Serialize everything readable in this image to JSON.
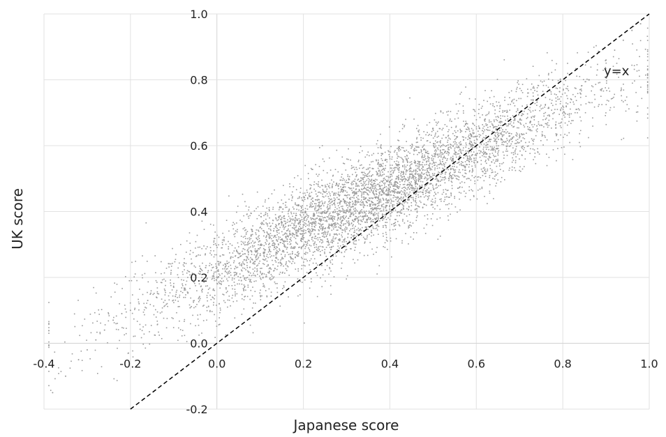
{
  "chart_data": {
    "type": "scatter",
    "title": "",
    "xlabel": "Japanese score",
    "ylabel": "UK score",
    "xlim": [
      -0.4,
      1.0
    ],
    "ylim": [
      -0.2,
      1.0
    ],
    "xticks": [
      "-0.4",
      "-0.2",
      "0.0",
      "0.2",
      "0.4",
      "0.6",
      "0.8",
      "1.0"
    ],
    "yticks": [
      "-0.2",
      "0.0",
      "0.2",
      "0.4",
      "0.6",
      "0.8",
      "1.0"
    ],
    "grid": true,
    "point_color": "#9a9a9a",
    "reference_line": {
      "label": "y=x",
      "from": [
        -0.2,
        -0.2
      ],
      "to": [
        1.0,
        1.0
      ],
      "style": "dashed",
      "color": "#000000"
    },
    "series": [
      {
        "name": "",
        "approx_trend": {
          "slope": 0.62,
          "intercept": 0.22
        },
        "x": [
          -0.38,
          -0.35,
          -0.32,
          -0.3,
          -0.28,
          -0.26,
          -0.24,
          -0.22,
          -0.2,
          -0.18,
          -0.16,
          -0.14,
          -0.12,
          -0.1,
          -0.08,
          -0.06,
          -0.04,
          -0.02,
          0.0,
          0.02,
          0.04,
          0.06,
          0.08,
          0.1,
          0.12,
          0.14,
          0.16,
          0.18,
          0.2,
          0.22,
          0.24,
          0.26,
          0.28,
          0.3,
          0.32,
          0.34,
          0.36,
          0.38,
          0.4,
          0.42,
          0.44,
          0.46,
          0.48,
          0.5,
          0.52,
          0.54,
          0.56,
          0.58,
          0.6,
          0.62,
          0.64,
          0.66,
          0.68,
          0.7,
          0.72,
          0.74,
          0.76,
          0.78,
          0.8,
          0.82,
          0.84,
          0.86,
          0.88,
          0.9,
          0.92,
          0.94,
          0.96,
          0.98
        ],
        "y": [
          -0.15,
          -0.1,
          -0.05,
          -0.02,
          0.01,
          0.04,
          0.07,
          0.09,
          0.1,
          0.12,
          0.13,
          0.14,
          0.16,
          0.17,
          0.18,
          0.2,
          0.21,
          0.22,
          0.23,
          0.24,
          0.25,
          0.27,
          0.28,
          0.29,
          0.3,
          0.31,
          0.32,
          0.33,
          0.34,
          0.36,
          0.37,
          0.38,
          0.39,
          0.4,
          0.41,
          0.42,
          0.44,
          0.45,
          0.46,
          0.47,
          0.48,
          0.49,
          0.5,
          0.51,
          0.52,
          0.54,
          0.55,
          0.56,
          0.57,
          0.58,
          0.59,
          0.61,
          0.62,
          0.63,
          0.65,
          0.66,
          0.68,
          0.7,
          0.72,
          0.74,
          0.77,
          0.8,
          0.83,
          0.86,
          0.89,
          0.92,
          0.95,
          0.97
        ]
      }
    ]
  }
}
